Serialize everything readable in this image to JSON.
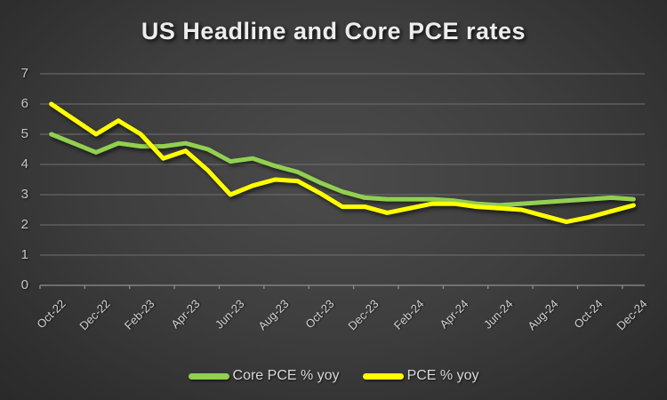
{
  "title": "US Headline and Core PCE rates",
  "chart_data": {
    "type": "line",
    "title": "US Headline and Core PCE rates",
    "x": [
      "Oct-22",
      "Nov-22",
      "Dec-22",
      "Jan-23",
      "Feb-23",
      "Mar-23",
      "Apr-23",
      "May-23",
      "Jun-23",
      "Jul-23",
      "Aug-23",
      "Sep-23",
      "Oct-23",
      "Nov-23",
      "Dec-23",
      "Jan-24",
      "Feb-24",
      "Mar-24",
      "Apr-24",
      "May-24",
      "Jun-24",
      "Jul-24",
      "Aug-24",
      "Sep-24",
      "Oct-24",
      "Nov-24",
      "Dec-24"
    ],
    "x_tick_labels": [
      "Oct-22",
      "Dec-22",
      "Feb-23",
      "Apr-23",
      "Jun-23",
      "Aug-23",
      "Oct-23",
      "Dec-23",
      "Feb-24",
      "Apr-24",
      "Jun-24",
      "Aug-24",
      "Oct-24",
      "Dec-24"
    ],
    "y_ticks": [
      0,
      1,
      2,
      3,
      4,
      5,
      6,
      7
    ],
    "ylim": [
      0,
      7
    ],
    "grid": true,
    "legend_position": "bottom",
    "series": [
      {
        "name": "Core PCE % yoy",
        "color": "#92d050",
        "values": [
          5.0,
          4.7,
          4.4,
          4.7,
          4.6,
          4.6,
          4.7,
          4.5,
          4.1,
          4.2,
          3.95,
          3.75,
          3.4,
          3.1,
          2.9,
          2.85,
          2.85,
          2.85,
          2.8,
          2.7,
          2.65,
          2.7,
          2.75,
          2.8,
          2.85,
          2.9,
          2.85
        ]
      },
      {
        "name": "PCE % yoy",
        "color": "#ffff00",
        "values": [
          6.0,
          5.5,
          5.0,
          5.45,
          5.0,
          4.2,
          4.45,
          3.8,
          3.0,
          3.3,
          3.5,
          3.45,
          3.05,
          2.6,
          2.6,
          2.4,
          2.55,
          2.7,
          2.7,
          2.6,
          2.55,
          2.5,
          2.3,
          2.1,
          2.25,
          2.45,
          2.65
        ]
      }
    ],
    "xlabel": "",
    "ylabel": ""
  },
  "colors": {
    "background_center": "#4b4b4b",
    "background_edge": "#242424",
    "gridline": "#6f6f6f",
    "axis_line": "#8f8f8f",
    "title_text": "#ededed",
    "tick_label": "#c4c4c4",
    "legend_text": "#d9d9d9",
    "core_pce_line": "#92d050",
    "pce_line": "#ffff00"
  }
}
